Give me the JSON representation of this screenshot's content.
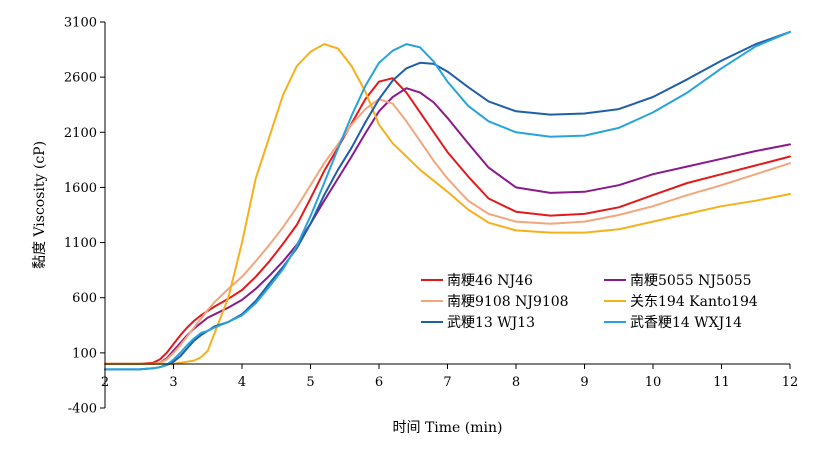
{
  "chart_data": {
    "type": "line",
    "title": "",
    "xlabel": "时间 Time (min)",
    "ylabel": "黏度 Viscosity (cP)",
    "xlim": [
      2,
      12
    ],
    "ylim": [
      -400,
      3100
    ],
    "x_ticks": [
      "2",
      "3",
      "4",
      "5",
      "6",
      "7",
      "8",
      "9",
      "10",
      "11",
      "12"
    ],
    "y_ticks": [
      "3100",
      "2600",
      "2100",
      "1600",
      "1100",
      "600",
      "100",
      "-400"
    ],
    "grid": false,
    "legend_position": "lower-right",
    "x": [
      2.0,
      2.5,
      2.7,
      2.8,
      2.9,
      3.0,
      3.1,
      3.2,
      3.3,
      3.4,
      3.5,
      3.6,
      3.8,
      4.0,
      4.2,
      4.4,
      4.6,
      4.8,
      5.0,
      5.2,
      5.4,
      5.6,
      5.8,
      6.0,
      6.2,
      6.4,
      6.6,
      6.8,
      7.0,
      7.3,
      7.6,
      8.0,
      8.5,
      9.0,
      9.5,
      10.0,
      10.5,
      11.0,
      11.5,
      12.0
    ],
    "series": [
      {
        "name": "南粳46 NJ46",
        "color": "#e31a1c",
        "values": [
          0,
          0,
          10,
          40,
          100,
          180,
          260,
          330,
          390,
          440,
          480,
          520,
          590,
          670,
          790,
          930,
          1090,
          1260,
          1500,
          1750,
          1960,
          2180,
          2400,
          2560,
          2590,
          2460,
          2280,
          2100,
          1920,
          1700,
          1500,
          1380,
          1345,
          1360,
          1420,
          1530,
          1640,
          1720,
          1800,
          1880
        ]
      },
      {
        "name": "南粳5055 NJ5055",
        "color": "#8b1a89",
        "values": [
          0,
          0,
          0,
          10,
          50,
          120,
          190,
          260,
          320,
          370,
          420,
          450,
          510,
          580,
          680,
          800,
          930,
          1080,
          1270,
          1480,
          1680,
          1880,
          2090,
          2290,
          2420,
          2500,
          2460,
          2370,
          2230,
          2000,
          1780,
          1600,
          1550,
          1560,
          1620,
          1720,
          1790,
          1860,
          1930,
          1990
        ]
      },
      {
        "name": "南粳9108 NJ9108",
        "color": "#f2a67d",
        "values": [
          0,
          0,
          0,
          10,
          40,
          100,
          170,
          250,
          330,
          410,
          490,
          560,
          680,
          790,
          930,
          1080,
          1240,
          1420,
          1620,
          1820,
          1990,
          2170,
          2310,
          2400,
          2360,
          2200,
          2020,
          1840,
          1680,
          1480,
          1360,
          1290,
          1270,
          1290,
          1350,
          1430,
          1530,
          1620,
          1720,
          1820
        ]
      },
      {
        "name": "关东194 Kanto194",
        "color": "#f5b01c",
        "values": [
          0,
          0,
          0,
          0,
          0,
          0,
          10,
          20,
          30,
          60,
          120,
          280,
          600,
          1100,
          1680,
          2060,
          2440,
          2700,
          2830,
          2900,
          2860,
          2700,
          2470,
          2170,
          2000,
          1880,
          1760,
          1660,
          1560,
          1400,
          1280,
          1210,
          1190,
          1190,
          1220,
          1290,
          1360,
          1430,
          1480,
          1540
        ]
      },
      {
        "name": "武粳13 WJ13",
        "color": "#1f5fa8",
        "values": [
          -50,
          -50,
          -40,
          -30,
          -10,
          20,
          70,
          140,
          210,
          260,
          300,
          340,
          380,
          450,
          570,
          730,
          880,
          1050,
          1270,
          1530,
          1760,
          1960,
          2190,
          2400,
          2570,
          2680,
          2730,
          2720,
          2650,
          2510,
          2380,
          2290,
          2260,
          2270,
          2310,
          2420,
          2580,
          2750,
          2900,
          3010
        ]
      },
      {
        "name": "武香粳14 WXJ14",
        "color": "#27a3dc",
        "values": [
          -50,
          -50,
          -40,
          -30,
          -10,
          40,
          100,
          170,
          230,
          280,
          300,
          330,
          380,
          440,
          550,
          700,
          860,
          1070,
          1340,
          1640,
          1950,
          2250,
          2520,
          2730,
          2840,
          2900,
          2870,
          2740,
          2560,
          2340,
          2200,
          2100,
          2060,
          2070,
          2140,
          2280,
          2460,
          2680,
          2880,
          3010
        ]
      }
    ]
  }
}
